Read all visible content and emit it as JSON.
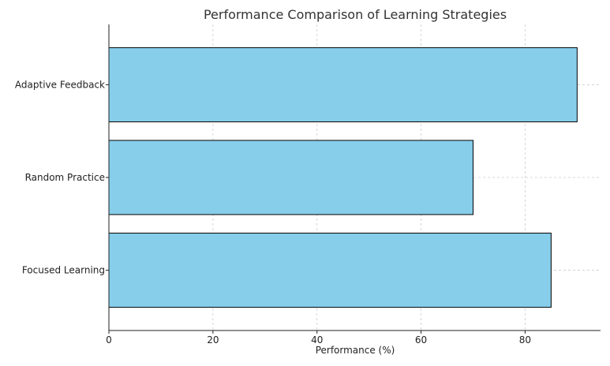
{
  "chart_data": {
    "type": "bar",
    "orientation": "horizontal",
    "title": "Performance Comparison of Learning Strategies",
    "xlabel": "Performance (%)",
    "ylabel": "",
    "categories": [
      "Focused Learning",
      "Random Practice",
      "Adaptive Feedback"
    ],
    "values": [
      85,
      70,
      90
    ],
    "xlim": [
      0,
      94.5
    ],
    "xticks": [
      0,
      20,
      40,
      60,
      80
    ],
    "xtick_labels": [
      "0",
      "20",
      "40",
      "60",
      "80"
    ],
    "grid": true,
    "legend": "none",
    "colors": {
      "bar": "#87ceeb",
      "bar_edge": "#000000"
    }
  }
}
